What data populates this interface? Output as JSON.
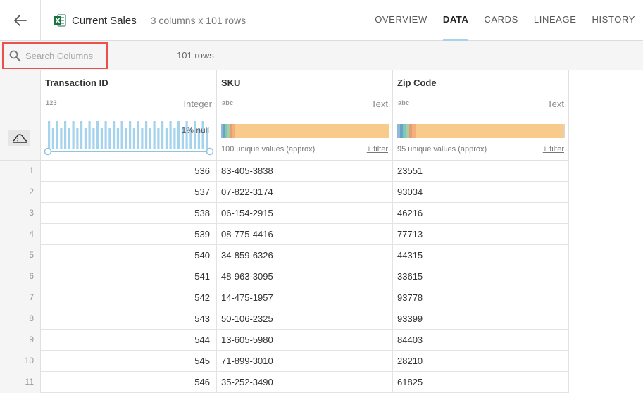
{
  "header": {
    "back_icon": "arrow-left-icon",
    "file_icon": "excel-icon",
    "title": "Current Sales",
    "subtitle": "3 columns x 101 rows",
    "tabs": [
      {
        "label": "OVERVIEW",
        "active": false
      },
      {
        "label": "DATA",
        "active": true
      },
      {
        "label": "CARDS",
        "active": false
      },
      {
        "label": "LINEAGE",
        "active": false
      },
      {
        "label": "HISTORY",
        "active": false
      }
    ]
  },
  "toolbar": {
    "search_placeholder": "Search Columns",
    "search_value": "",
    "search_icon": "search-icon",
    "rows_label": "101 rows"
  },
  "columns": [
    {
      "name": "Transaction ID",
      "type_icon": "123",
      "type_label": "Integer",
      "null_label": "1% null",
      "profile": "histogram"
    },
    {
      "name": "SKU",
      "type_icon": "abc",
      "type_label": "Text",
      "unique_label": "100 unique values (approx)",
      "filter_label": "+ filter",
      "profile": "categorical"
    },
    {
      "name": "Zip Code",
      "type_icon": "abc",
      "type_label": "Text",
      "unique_label": "95 unique values (approx)",
      "filter_label": "+ filter",
      "profile": "categorical"
    }
  ],
  "rows": [
    {
      "n": "1",
      "id": "536",
      "sku": "83-405-3838",
      "zip": "23551"
    },
    {
      "n": "2",
      "id": "537",
      "sku": "07-822-3174",
      "zip": "93034"
    },
    {
      "n": "3",
      "id": "538",
      "sku": "06-154-2915",
      "zip": "46216"
    },
    {
      "n": "4",
      "id": "539",
      "sku": "08-775-4416",
      "zip": "77713"
    },
    {
      "n": "5",
      "id": "540",
      "sku": "34-859-6326",
      "zip": "44315"
    },
    {
      "n": "6",
      "id": "541",
      "sku": "48-963-3095",
      "zip": "33615"
    },
    {
      "n": "7",
      "id": "542",
      "sku": "14-475-1957",
      "zip": "93778"
    },
    {
      "n": "8",
      "id": "543",
      "sku": "50-106-2325",
      "zip": "93399"
    },
    {
      "n": "9",
      "id": "544",
      "sku": "13-605-5980",
      "zip": "84403"
    },
    {
      "n": "10",
      "id": "545",
      "sku": "71-899-3010",
      "zip": "28210"
    },
    {
      "n": "11",
      "id": "546",
      "sku": "35-252-3490",
      "zip": "61825"
    }
  ],
  "colors": {
    "accent_tab": "#a9d3ea",
    "search_highlight": "#e8524a",
    "histogram_bar": "#a5d3ee",
    "categorical_main": "#f9cb8b"
  }
}
